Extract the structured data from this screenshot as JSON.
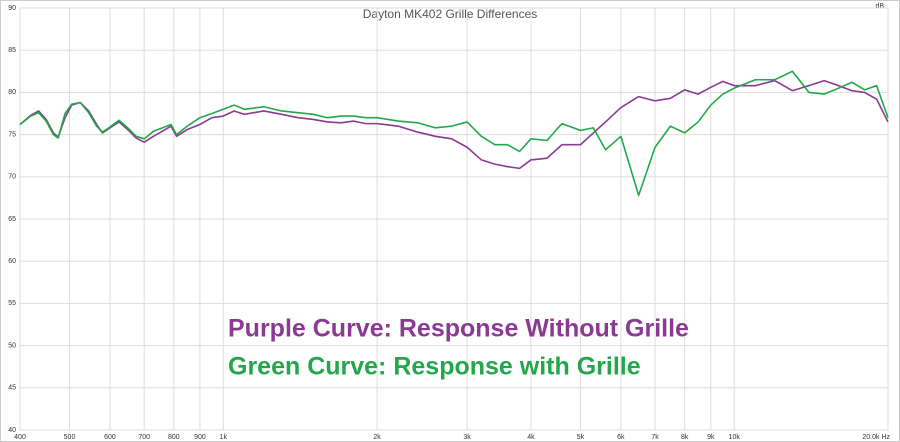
{
  "chart_data": {
    "type": "line",
    "title": "Dayton MK402 Grille Differences",
    "y_unit": "dB",
    "x": [
      400,
      420,
      435,
      450,
      465,
      475,
      490,
      505,
      525,
      545,
      565,
      580,
      600,
      625,
      650,
      675,
      700,
      730,
      760,
      790,
      810,
      850,
      900,
      950,
      1000,
      1050,
      1100,
      1200,
      1300,
      1400,
      1500,
      1600,
      1700,
      1800,
      1900,
      2000,
      2200,
      2400,
      2600,
      2800,
      3000,
      3200,
      3400,
      3600,
      3800,
      4000,
      4300,
      4600,
      5000,
      5300,
      5600,
      6000,
      6500,
      7000,
      7500,
      8000,
      8500,
      9000,
      9500,
      10000,
      11000,
      12000,
      13000,
      14000,
      15000,
      16000,
      17000,
      18000,
      19000,
      20000
    ],
    "series": [
      {
        "name": "Purple Curve: Response Without Grille",
        "color": "#8a3a92",
        "values": [
          76.2,
          77.3,
          77.8,
          76.8,
          75.2,
          74.7,
          77.0,
          78.5,
          78.8,
          77.8,
          76.2,
          75.2,
          75.8,
          76.5,
          75.6,
          74.6,
          74.1,
          74.8,
          75.4,
          76.0,
          74.8,
          75.6,
          76.2,
          77.0,
          77.2,
          77.8,
          77.4,
          77.8,
          77.4,
          77.0,
          76.8,
          76.5,
          76.4,
          76.6,
          76.3,
          76.3,
          76.0,
          75.3,
          74.8,
          74.5,
          73.5,
          72.0,
          71.5,
          71.2,
          71.0,
          72.0,
          72.2,
          73.8,
          73.8,
          75.2,
          76.5,
          78.2,
          79.5,
          79.0,
          79.3,
          80.3,
          79.8,
          80.6,
          81.3,
          80.8,
          80.8,
          81.4,
          80.2,
          80.8,
          81.4,
          80.8,
          80.2,
          80.0,
          79.2,
          76.5
        ]
      },
      {
        "name": "Green Curve: Response with Grille",
        "color": "#22a84a",
        "values": [
          76.2,
          77.2,
          77.6,
          76.6,
          75.0,
          74.6,
          77.5,
          78.6,
          78.8,
          77.6,
          76.0,
          75.3,
          75.9,
          76.7,
          75.8,
          74.8,
          74.5,
          75.4,
          75.8,
          76.2,
          75.0,
          76.0,
          77.0,
          77.5,
          78.0,
          78.5,
          78.0,
          78.3,
          77.8,
          77.6,
          77.4,
          77.0,
          77.2,
          77.2,
          77.0,
          77.0,
          76.6,
          76.4,
          75.8,
          76.0,
          76.5,
          74.8,
          73.8,
          73.8,
          73.0,
          74.5,
          74.3,
          76.3,
          75.5,
          75.8,
          73.2,
          74.8,
          67.8,
          73.5,
          76.0,
          75.2,
          76.5,
          78.5,
          79.8,
          80.5,
          81.5,
          81.5,
          82.5,
          80.0,
          79.8,
          80.5,
          81.2,
          80.3,
          80.8,
          77.0
        ]
      }
    ],
    "xscale": "log",
    "xlim": [
      400,
      20000
    ],
    "ylim": [
      40,
      90
    ],
    "grid": true,
    "xticks": [
      400,
      500,
      600,
      700,
      800,
      900,
      {
        "value": 1000,
        "label": "1k"
      },
      {
        "value": 2000,
        "label": "2k"
      },
      {
        "value": 3000,
        "label": "3k"
      },
      {
        "value": 4000,
        "label": "4k"
      },
      {
        "value": 5000,
        "label": "5k"
      },
      {
        "value": 6000,
        "label": "6k"
      },
      {
        "value": 7000,
        "label": "7k"
      },
      {
        "value": 8000,
        "label": "8k"
      },
      {
        "value": 9000,
        "label": "9k"
      },
      {
        "value": 10000,
        "label": "10k"
      },
      {
        "value": 20000,
        "label": "20.0k Hz"
      }
    ],
    "yticks": [
      40,
      45,
      50,
      55,
      60,
      65,
      70,
      75,
      80,
      85,
      90
    ]
  }
}
